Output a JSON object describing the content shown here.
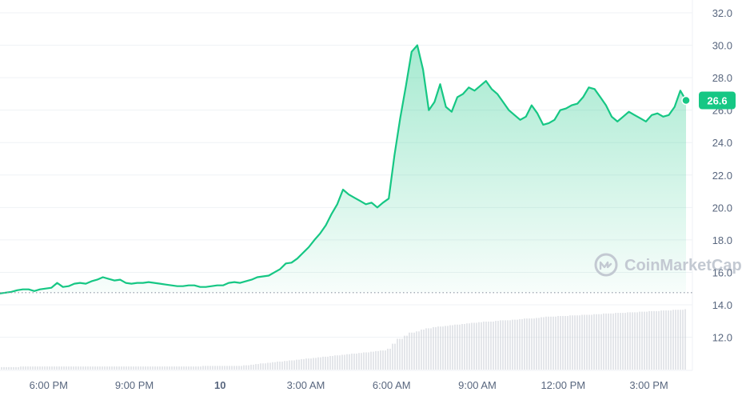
{
  "chart_data": {
    "type": "area",
    "title": "",
    "xlabel": "",
    "ylabel": "",
    "ylim": [
      10.0,
      33.0
    ],
    "y_ticks": [
      "32.0",
      "30.0",
      "28.0",
      "26.0",
      "24.0",
      "22.0",
      "20.0",
      "18.0",
      "16.0",
      "14.0",
      "12.0"
    ],
    "x_ticks": [
      "6:00 PM",
      "9:00 PM",
      "10",
      "3:00 AM",
      "6:00 AM",
      "9:00 AM",
      "12:00 PM",
      "3:00 PM"
    ],
    "x_ticks_bold": [
      "10"
    ],
    "x_range_hours": [
      -1.7,
      22.3
    ],
    "x_tick_hours": [
      0,
      3,
      6,
      9,
      12,
      15,
      18,
      21
    ],
    "current_price": "26.6",
    "reference_line": 14.75,
    "grid": true,
    "colors": {
      "line": "#16c784",
      "fill": "#16c784",
      "volume": "#c9cdd4",
      "badge": "#16c784",
      "reference": "#8d95a3"
    },
    "series": [
      {
        "hours": [
          -1.7,
          -1.5,
          -1.3,
          -1.1,
          -0.9,
          -0.7,
          -0.5,
          -0.3,
          -0.1,
          0.1,
          0.3,
          0.5,
          0.7,
          0.9,
          1.1,
          1.3,
          1.5,
          1.7,
          1.9,
          2.1,
          2.3,
          2.5,
          2.7,
          2.9,
          3.1,
          3.3,
          3.5,
          3.7,
          3.9,
          4.1,
          4.3,
          4.5,
          4.7,
          4.9,
          5.1,
          5.3,
          5.5,
          5.7,
          5.9,
          6.1,
          6.3,
          6.5,
          6.7,
          6.9,
          7.1,
          7.3,
          7.5,
          7.7,
          7.9,
          8.1,
          8.3,
          8.5,
          8.7,
          8.9,
          9.1,
          9.3,
          9.5,
          9.7,
          9.9,
          10.1,
          10.3,
          10.5,
          10.7,
          10.9,
          11.1,
          11.3,
          11.5,
          11.7,
          11.9,
          12.1,
          12.3,
          12.5,
          12.7,
          12.9,
          13.1,
          13.3,
          13.5,
          13.7,
          13.9,
          14.1,
          14.3,
          14.5,
          14.7,
          14.9,
          15.1,
          15.3,
          15.5,
          15.7,
          15.9,
          16.1,
          16.3,
          16.5,
          16.7,
          16.9,
          17.1,
          17.3,
          17.5,
          17.7,
          17.9,
          18.1,
          18.3,
          18.5,
          18.7,
          18.9,
          19.1,
          19.3,
          19.5,
          19.7,
          19.9,
          20.1,
          20.3,
          20.5,
          20.7,
          20.9,
          21.1,
          21.3,
          21.5,
          21.7,
          21.9,
          22.1,
          22.3
        ],
        "values": [
          14.7,
          14.75,
          14.8,
          14.9,
          14.95,
          14.95,
          14.85,
          14.95,
          15.0,
          15.05,
          15.35,
          15.1,
          15.15,
          15.3,
          15.35,
          15.3,
          15.45,
          15.55,
          15.7,
          15.6,
          15.5,
          15.55,
          15.35,
          15.3,
          15.35,
          15.35,
          15.4,
          15.35,
          15.3,
          15.25,
          15.2,
          15.15,
          15.15,
          15.2,
          15.2,
          15.1,
          15.1,
          15.15,
          15.2,
          15.2,
          15.35,
          15.4,
          15.35,
          15.45,
          15.55,
          15.7,
          15.75,
          15.8,
          16.0,
          16.2,
          16.55,
          16.6,
          16.85,
          17.2,
          17.55,
          18.0,
          18.4,
          18.9,
          19.6,
          20.2,
          21.1,
          20.8,
          20.6,
          20.4,
          20.2,
          20.3,
          20.0,
          20.3,
          20.55,
          23.2,
          25.5,
          27.5,
          29.6,
          30.0,
          28.5,
          26.0,
          26.5,
          27.6,
          26.2,
          25.9,
          26.8,
          27.0,
          27.4,
          27.2,
          27.5,
          27.8,
          27.3,
          27.0,
          26.5,
          26.0,
          25.7,
          25.4,
          25.6,
          26.3,
          25.8,
          25.1,
          25.2,
          25.4,
          26.0,
          26.1,
          26.3,
          26.4,
          26.8,
          27.4,
          27.3,
          26.8,
          26.3,
          25.6,
          25.3,
          25.6,
          25.9,
          25.7,
          25.5,
          25.3,
          25.7,
          25.8,
          25.6,
          25.7,
          26.2,
          27.2,
          26.6
        ],
        "volume_levels": [
          0.04,
          0.04,
          0.04,
          0.04,
          0.05,
          0.05,
          0.05,
          0.05,
          0.05,
          0.05,
          0.05,
          0.05,
          0.05,
          0.05,
          0.05,
          0.05,
          0.05,
          0.05,
          0.05,
          0.05,
          0.05,
          0.05,
          0.05,
          0.05,
          0.05,
          0.05,
          0.05,
          0.05,
          0.05,
          0.05,
          0.05,
          0.05,
          0.05,
          0.05,
          0.05,
          0.05,
          0.06,
          0.06,
          0.06,
          0.06,
          0.06,
          0.06,
          0.06,
          0.07,
          0.08,
          0.09,
          0.1,
          0.11,
          0.12,
          0.13,
          0.14,
          0.15,
          0.16,
          0.17,
          0.18,
          0.19,
          0.2,
          0.21,
          0.22,
          0.23,
          0.24,
          0.25,
          0.26,
          0.27,
          0.28,
          0.29,
          0.3,
          0.31,
          0.34,
          0.42,
          0.5,
          0.55,
          0.6,
          0.62,
          0.65,
          0.67,
          0.69,
          0.7,
          0.71,
          0.72,
          0.73,
          0.74,
          0.75,
          0.76,
          0.77,
          0.78,
          0.78,
          0.79,
          0.8,
          0.8,
          0.81,
          0.82,
          0.83,
          0.83,
          0.84,
          0.85,
          0.86,
          0.86,
          0.87,
          0.87,
          0.88,
          0.88,
          0.89,
          0.89,
          0.9,
          0.9,
          0.91,
          0.91,
          0.92,
          0.92,
          0.93,
          0.93,
          0.94,
          0.94,
          0.95,
          0.95,
          0.96,
          0.96,
          0.97,
          0.97,
          0.98
        ]
      }
    ]
  },
  "watermark": {
    "text": "CoinMarketCap",
    "icon": "coinmarketcap-logo-icon"
  }
}
